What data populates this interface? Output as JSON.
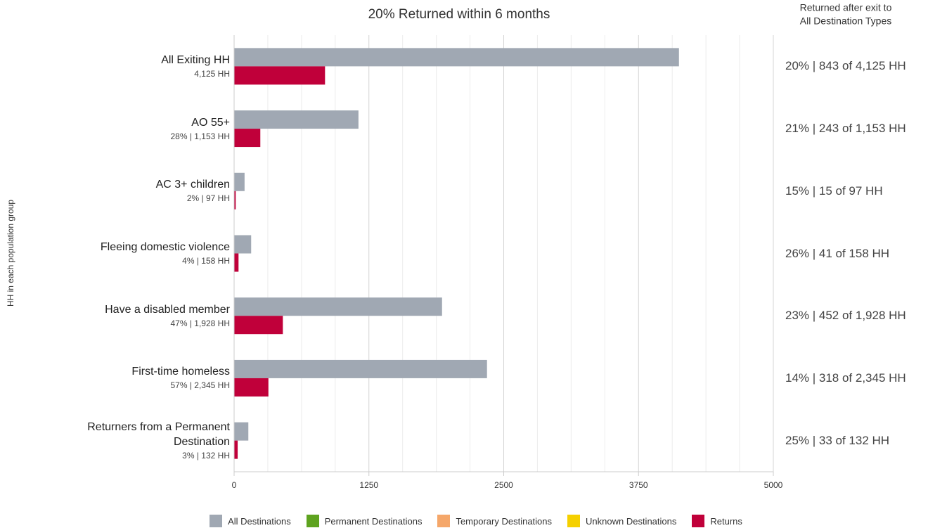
{
  "chart_data": {
    "type": "bar",
    "orientation": "horizontal",
    "title": "20% Returned within 6 months",
    "right_header": [
      "Returned after exit to",
      "All Destination Types"
    ],
    "y_axis_label": "HH in each population group",
    "categories": [
      "All Exiting HH",
      "AO 55+",
      "AC 3+ children",
      "Fleeing domestic violence",
      "Have a disabled member",
      "First-time homeless",
      "Returners from a Permanent Destination"
    ],
    "category_notes": [
      "4,125 HH",
      "28% | 1,153 HH",
      "2% | 97 HH",
      "4% | 158 HH",
      "47% | 1,928 HH",
      "57% | 2,345 HH",
      "3% | 132 HH"
    ],
    "right_labels": [
      "20% | 843 of 4,125 HH",
      "21% | 243 of 1,153 HH",
      "15% | 15 of 97 HH",
      "26% | 41 of 158 HH",
      "23% | 452 of 1,928 HH",
      "14% | 318 of 2,345 HH",
      "25% | 33 of 132 HH"
    ],
    "series": [
      {
        "name": "All Destinations",
        "color": "#a0a8b3",
        "values": [
          4125,
          1153,
          97,
          158,
          1928,
          2345,
          132
        ]
      },
      {
        "name": "Permanent Destinations",
        "color": "#5ea31f",
        "values": [
          null,
          null,
          null,
          null,
          null,
          null,
          null
        ]
      },
      {
        "name": "Temporary Destinations",
        "color": "#f5a76a",
        "values": [
          null,
          null,
          null,
          null,
          null,
          null,
          null
        ]
      },
      {
        "name": "Unknown Destinations",
        "color": "#f5d000",
        "values": [
          null,
          null,
          null,
          null,
          null,
          null,
          null
        ]
      },
      {
        "name": "Returns",
        "color": "#c0003a",
        "values": [
          843,
          243,
          15,
          41,
          452,
          318,
          33
        ]
      }
    ],
    "xlim": [
      0,
      5000
    ],
    "xticks": [
      0,
      1250,
      2500,
      3750,
      5000
    ],
    "minor_xticks": [
      312.5,
      625,
      937.5,
      1562.5,
      1875,
      2187.5,
      2812.5,
      3125,
      3437.5,
      4062.5,
      4375,
      4687.5
    ],
    "grid": true,
    "legend": "bottom"
  }
}
